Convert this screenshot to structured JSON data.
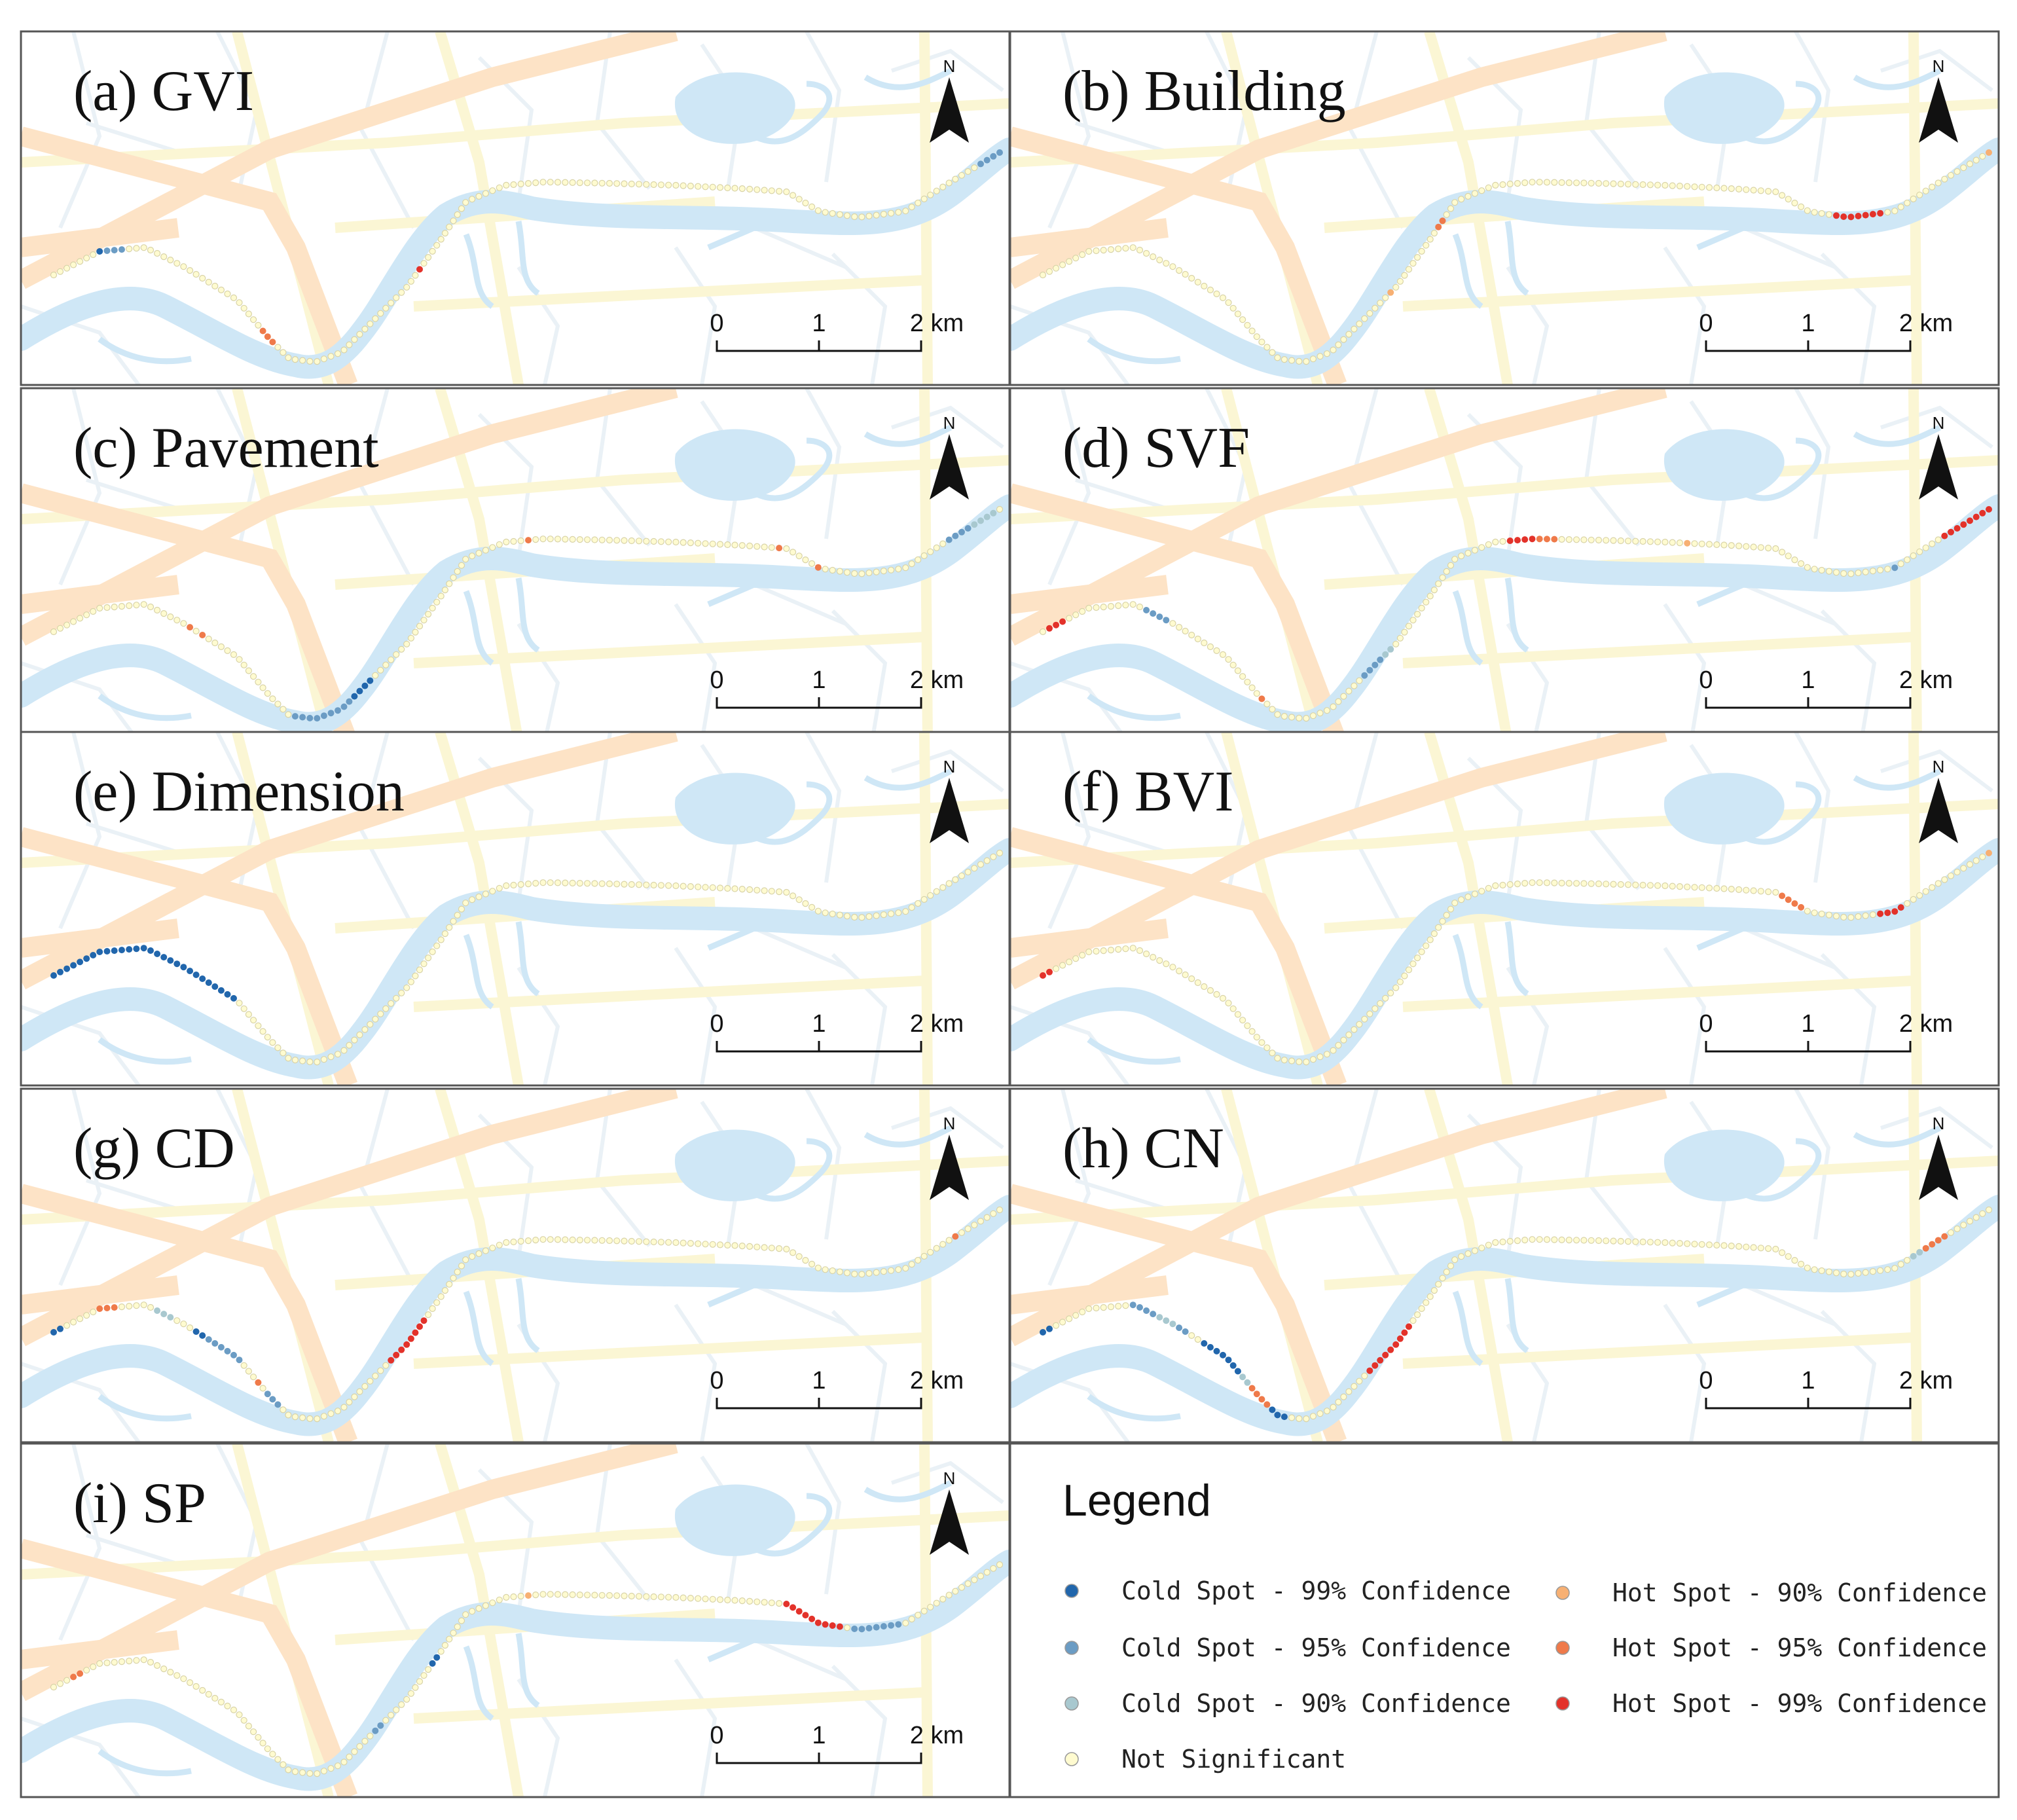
{
  "colors": {
    "water": "#cfe7f6",
    "road_major": "#fde2c4",
    "road_minor": "#fbf7d5",
    "road_thin": "#eef3f7",
    "panel_border": "#555555",
    "cold_99": "#2166ac",
    "cold_95": "#6b9cc4",
    "cold_90": "#a8c8cf",
    "not_significant": "#fffbd0",
    "hot_90": "#f7b073",
    "hot_95": "#ef7a4a",
    "hot_99": "#e3322a"
  },
  "panels": [
    {
      "title": "(a) GVI",
      "cold_99": [
        [
          7,
          7
        ]
      ],
      "cold_95": [
        [
          8,
          10
        ],
        [
          145,
          148
        ]
      ],
      "cold_90": [],
      "hot_90": [],
      "hot_95": [
        [
          33,
          35
        ]
      ],
      "hot_99": [
        [
          61,
          61
        ]
      ]
    },
    {
      "title": "(b) Building",
      "cold_99": [],
      "cold_95": [],
      "cold_90": [],
      "hot_90": [
        [
          57,
          57
        ],
        [
          148,
          148
        ]
      ],
      "hot_95": [
        [
          68,
          69
        ]
      ],
      "hot_99": [
        [
          125,
          131
        ]
      ]
    },
    {
      "title": "(c) Pavement",
      "cold_99": [
        [
          48,
          51
        ]
      ],
      "cold_95": [
        [
          39,
          47
        ],
        [
          140,
          143
        ]
      ],
      "cold_90": [
        [
          144,
          147
        ]
      ],
      "hot_90": [],
      "hot_95": [
        [
          20,
          20
        ],
        [
          22,
          22
        ],
        [
          81,
          81
        ],
        [
          115,
          115
        ],
        [
          121,
          121
        ]
      ],
      "hot_99": []
    },
    {
      "title": "(d) SVF",
      "cold_99": [],
      "cold_95": [
        [
          15,
          18
        ],
        [
          52,
          55
        ],
        [
          133,
          133
        ]
      ],
      "cold_90": [
        [
          56,
          57
        ]
      ],
      "hot_90": [
        [
          104,
          104
        ]
      ],
      "hot_95": [
        [
          35,
          35
        ],
        [
          84,
          86
        ]
      ],
      "hot_99": [
        [
          1,
          3
        ],
        [
          80,
          83
        ],
        [
          141,
          148
        ]
      ]
    },
    {
      "title": "(e) Dimension",
      "cold_99": [
        [
          0,
          27
        ]
      ],
      "cold_95": [],
      "cold_90": [],
      "hot_90": [],
      "hot_95": [],
      "hot_99": []
    },
    {
      "title": "(f) BVI",
      "cold_99": [],
      "cold_95": [],
      "cold_90": [],
      "hot_90": [
        [
          148,
          148
        ]
      ],
      "hot_95": [
        [
          117,
          120
        ]
      ],
      "hot_99": [
        [
          0,
          1
        ],
        [
          131,
          134
        ]
      ]
    },
    {
      "title": "(g) CD",
      "cold_99": [
        [
          0,
          1
        ],
        [
          21,
          22
        ]
      ],
      "cold_95": [
        [
          23,
          28
        ],
        [
          34,
          36
        ]
      ],
      "cold_90": [
        [
          15,
          17
        ]
      ],
      "hot_90": [],
      "hot_95": [
        [
          7,
          9
        ],
        [
          32,
          32
        ],
        [
          141,
          141
        ]
      ],
      "hot_99": [
        [
          55,
          62
        ]
      ]
    },
    {
      "title": "(h) CN",
      "cold_99": [
        [
          0,
          1
        ],
        [
          24,
          30
        ],
        [
          37,
          39
        ]
      ],
      "cold_95": [
        [
          13,
          16
        ],
        [
          20,
          21
        ]
      ],
      "cold_90": [
        [
          17,
          19
        ],
        [
          31,
          32
        ],
        [
          136,
          137
        ]
      ],
      "hot_90": [],
      "hot_95": [
        [
          33,
          36
        ],
        [
          138,
          141
        ]
      ],
      "hot_99": [
        [
          53,
          61
        ]
      ]
    },
    {
      "title": "(i) SP",
      "cold_99": [
        [
          64,
          65
        ]
      ],
      "cold_95": [
        [
          52,
          53
        ],
        [
          126,
          132
        ]
      ],
      "cold_90": [],
      "hot_90": [
        [
          81,
          81
        ]
      ],
      "hot_95": [
        [
          3,
          4
        ]
      ],
      "hot_99": [
        [
          116,
          124
        ]
      ]
    }
  ],
  "scale_bar": {
    "labels": [
      "0",
      "1",
      "2 km"
    ]
  },
  "north_label": "N",
  "legend": {
    "title": "Legend",
    "items": [
      {
        "label": "Cold Spot - 99% Confidence",
        "color_key": "cold_99"
      },
      {
        "label": "Cold Spot - 95% Confidence",
        "color_key": "cold_95"
      },
      {
        "label": "Cold Spot - 90% Confidence",
        "color_key": "cold_90"
      },
      {
        "label": "Not Significant",
        "color_key": "not_significant"
      },
      {
        "label": "Hot Spot - 90% Confidence",
        "color_key": "hot_90"
      },
      {
        "label": "Hot Spot - 95% Confidence",
        "color_key": "hot_95"
      },
      {
        "label": "Hot Spot - 99% Confidence",
        "color_key": "hot_99"
      }
    ]
  }
}
